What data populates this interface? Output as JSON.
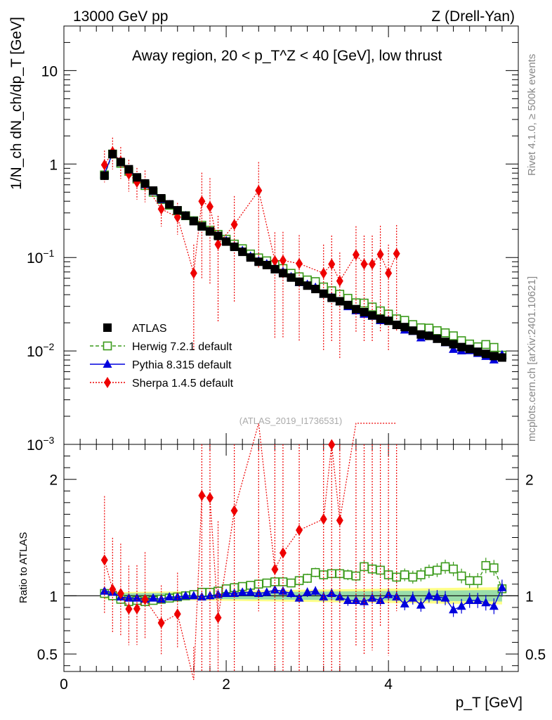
{
  "header": {
    "left": "13000 GeV pp",
    "right": "Z (Drell-Yan)"
  },
  "side": {
    "top": "Rivet 4.1.0, ≥ 500k events",
    "bottom": "mcplots.cern.ch [arXiv:2401.10621]"
  },
  "watermark": "(ATLAS_2019_I1736531)",
  "colors": {
    "atlas": "#000000",
    "herwig": "#3a9a1a",
    "pythia": "#0000dd",
    "sherpa": "#ee0000",
    "band_inner": "#99ddaa",
    "band_outer": "#ffff88"
  },
  "chart_data": {
    "type": "scatter",
    "title": "Away region, 20 < p_T^Z < 40 [GeV], low thrust",
    "xlabel": "p_T [GeV]",
    "ylabel": "1/N_ch dN_ch/dp_T [GeV]",
    "ratio_ylabel": "Ratio to ATLAS",
    "xlim": [
      0,
      5.6
    ],
    "ylim": [
      0.001,
      30
    ],
    "yscale": "log",
    "ratio_ylim": [
      0.35,
      2.3
    ],
    "x_ticks": [
      "0",
      "2",
      "4"
    ],
    "y_ticks": [
      "10^-3",
      "10^-2",
      "10^-1",
      "1",
      "10"
    ],
    "ratio_ticks": [
      "0.5",
      "1",
      "2"
    ],
    "x": [
      0.5,
      0.6,
      0.7,
      0.8,
      0.9,
      1.0,
      1.1,
      1.2,
      1.3,
      1.4,
      1.5,
      1.6,
      1.7,
      1.8,
      1.9,
      2.0,
      2.1,
      2.2,
      2.3,
      2.4,
      2.5,
      2.6,
      2.7,
      2.8,
      2.9,
      3.0,
      3.1,
      3.2,
      3.3,
      3.4,
      3.5,
      3.6,
      3.7,
      3.8,
      3.9,
      4.0,
      4.1,
      4.2,
      4.3,
      4.4,
      4.5,
      4.6,
      4.7,
      4.8,
      4.9,
      5.0,
      5.1,
      5.2,
      5.3,
      5.4
    ],
    "legend": [
      "ATLAS",
      "Herwig 7.2.1 default",
      "Pythia 8.315 default",
      "Sherpa 1.4.5 default"
    ],
    "series": [
      {
        "name": "ATLAS",
        "values": [
          0.75,
          1.28,
          1.05,
          0.88,
          0.72,
          0.62,
          0.52,
          0.43,
          0.37,
          0.32,
          0.28,
          0.245,
          0.215,
          0.19,
          0.17,
          0.148,
          0.13,
          0.115,
          0.1,
          0.09,
          0.083,
          0.075,
          0.068,
          0.061,
          0.055,
          0.05,
          0.046,
          0.041,
          0.037,
          0.034,
          0.031,
          0.028,
          0.026,
          0.024,
          0.022,
          0.021,
          0.019,
          0.018,
          0.0165,
          0.015,
          0.0145,
          0.0135,
          0.0125,
          0.0118,
          0.011,
          0.0105,
          0.0098,
          0.0093,
          0.0088,
          0.0085
        ]
      },
      {
        "name": "Herwig 7.2.1 default",
        "ratio": [
          1.02,
          1.0,
          0.97,
          0.95,
          0.96,
          0.95,
          0.96,
          0.97,
          0.98,
          0.99,
          1.0,
          1.01,
          1.03,
          1.03,
          1.04,
          1.06,
          1.07,
          1.08,
          1.09,
          1.1,
          1.11,
          1.12,
          1.12,
          1.11,
          1.13,
          1.15,
          1.2,
          1.18,
          1.19,
          1.19,
          1.18,
          1.17,
          1.25,
          1.23,
          1.22,
          1.18,
          1.16,
          1.18,
          1.16,
          1.18,
          1.21,
          1.22,
          1.25,
          1.23,
          1.17,
          1.13,
          1.13,
          1.26,
          1.24,
          1.06
        ]
      },
      {
        "name": "Pythia 8.315 default",
        "ratio": [
          1.04,
          1.03,
          0.99,
          0.98,
          0.98,
          0.97,
          0.98,
          0.97,
          0.99,
          0.99,
          1.0,
          1.0,
          0.99,
          1.0,
          1.01,
          1.02,
          1.02,
          1.03,
          1.03,
          1.02,
          1.03,
          1.05,
          1.04,
          1.02,
          0.98,
          1.03,
          1.04,
          0.99,
          1.02,
          0.99,
          0.96,
          0.96,
          0.95,
          0.98,
          0.96,
          1.01,
          0.99,
          0.93,
          0.98,
          0.92,
          1.0,
          0.99,
          0.98,
          0.88,
          0.91,
          0.96,
          0.96,
          0.94,
          0.91,
          1.07
        ]
      },
      {
        "name": "Sherpa 1.4.5 default",
        "x": [
          0.5,
          0.6,
          0.7,
          0.8,
          0.9,
          1.0,
          1.2,
          1.4,
          1.6,
          1.7,
          1.8,
          1.9,
          2.1,
          2.4,
          2.6,
          2.7,
          2.9,
          3.2,
          3.3,
          3.4,
          3.6,
          3.7,
          3.8,
          3.9,
          4.0,
          4.1
        ],
        "values": [
          0.98,
          1.35,
          1.07,
          0.78,
          0.64,
          0.6,
          0.33,
          0.27,
          0.068,
          0.4,
          0.35,
          0.138,
          0.225,
          0.52,
          0.092,
          0.093,
          0.086,
          0.068,
          0.085,
          0.056,
          0.107,
          0.085,
          0.085,
          0.108,
          0.068,
          0.11
        ]
      }
    ]
  }
}
